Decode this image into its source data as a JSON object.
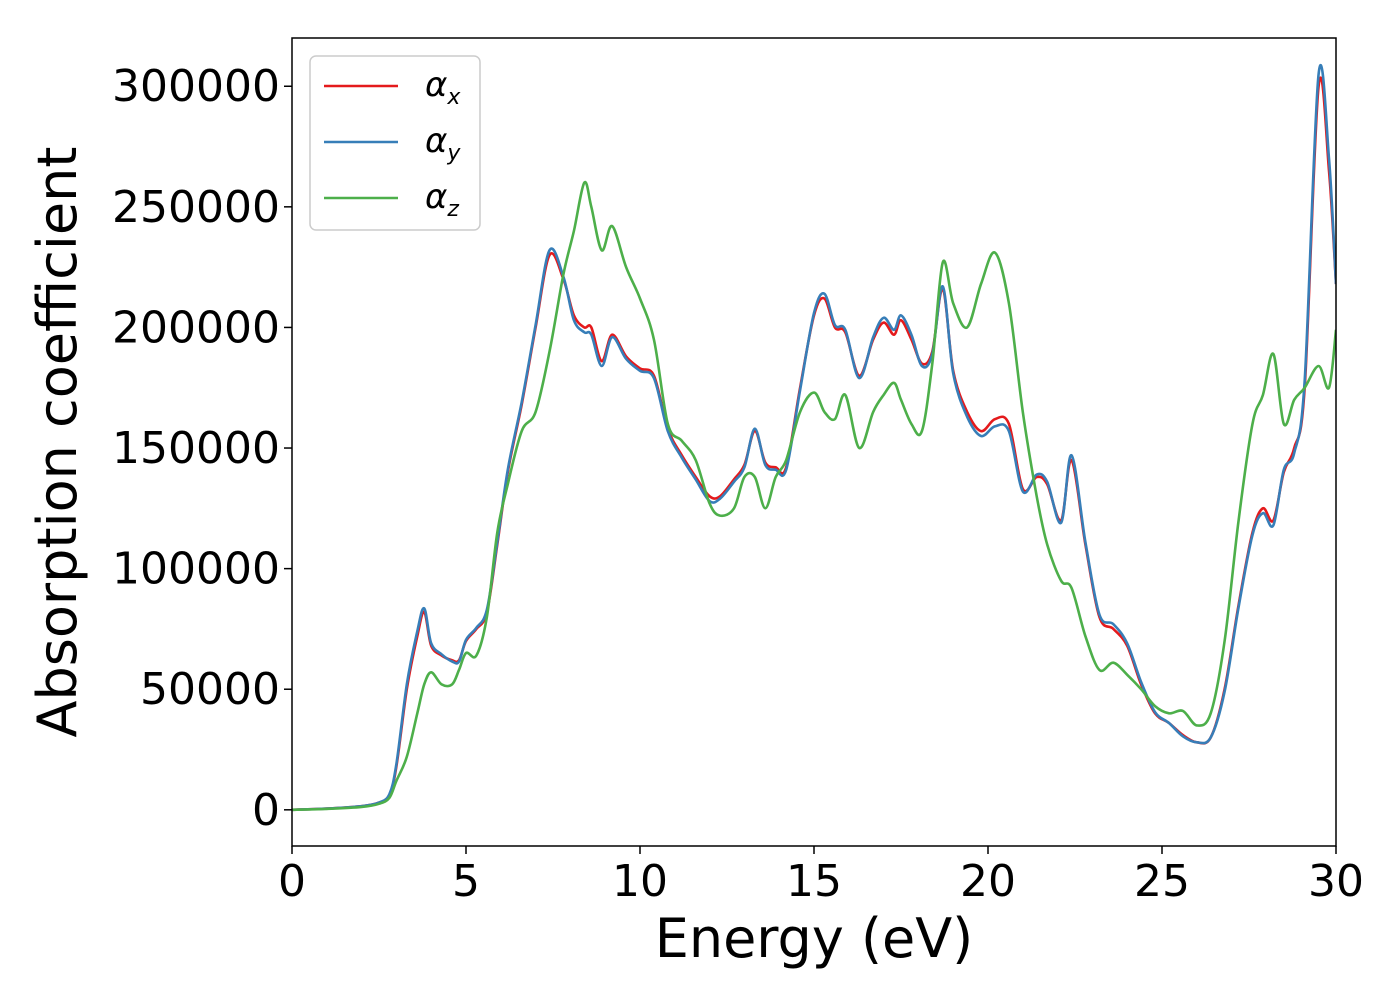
{
  "chart_data": {
    "type": "line",
    "title": "",
    "xlabel": "Energy (eV)",
    "ylabel": "Absorption coefficient",
    "xlim": [
      0,
      30
    ],
    "ylim": [
      -15000,
      320000
    ],
    "xticks": [
      0,
      5,
      10,
      15,
      20,
      25,
      30
    ],
    "xtick_labels": [
      "0",
      "5",
      "10",
      "15",
      "20",
      "25",
      "30"
    ],
    "yticks": [
      0,
      50000,
      100000,
      150000,
      200000,
      250000,
      300000
    ],
    "ytick_labels": [
      "0",
      "50000",
      "100000",
      "150000",
      "200000",
      "250000",
      "300000"
    ],
    "grid": false,
    "legend_position": "top-left",
    "series": [
      {
        "name": "α",
        "subscript": "x",
        "color": "#e41a1c",
        "x": [
          0,
          1,
          2,
          2.5,
          2.8,
          3.0,
          3.3,
          3.6,
          3.8,
          4.0,
          4.3,
          4.6,
          4.8,
          5.0,
          5.3,
          5.6,
          5.9,
          6.2,
          6.6,
          7.0,
          7.4,
          7.8,
          8.1,
          8.4,
          8.6,
          8.9,
          9.2,
          9.6,
          10.0,
          10.4,
          10.8,
          11.2,
          11.6,
          12.0,
          12.3,
          12.7,
          13.0,
          13.3,
          13.6,
          13.9,
          14.2,
          14.6,
          15.0,
          15.3,
          15.6,
          15.9,
          16.3,
          16.7,
          17.0,
          17.3,
          17.5,
          17.8,
          18.1,
          18.4,
          18.7,
          19.0,
          19.4,
          19.8,
          20.2,
          20.6,
          21.0,
          21.4,
          21.7,
          22.1,
          22.4,
          22.8,
          23.2,
          23.6,
          24.0,
          24.4,
          24.8,
          25.2,
          25.6,
          26.0,
          26.4,
          26.8,
          27.2,
          27.6,
          27.9,
          28.2,
          28.5,
          28.8,
          29.1,
          29.5,
          29.8,
          30.0
        ],
        "y": [
          0,
          500,
          1500,
          3000,
          6000,
          18000,
          50000,
          72000,
          82000,
          68000,
          64000,
          62000,
          62000,
          70000,
          75000,
          82000,
          110000,
          140000,
          168000,
          200000,
          230000,
          220000,
          205000,
          200000,
          200000,
          186000,
          197000,
          188000,
          183000,
          180000,
          158000,
          147000,
          138000,
          130000,
          130000,
          137000,
          143000,
          157000,
          144000,
          142000,
          142000,
          175000,
          205000,
          212000,
          200000,
          198000,
          180000,
          195000,
          202000,
          197000,
          203000,
          195000,
          185000,
          190000,
          216000,
          182000,
          165000,
          157000,
          162000,
          160000,
          133000,
          138000,
          135000,
          120000,
          145000,
          110000,
          80000,
          75000,
          68000,
          52000,
          40000,
          36000,
          31000,
          28000,
          30000,
          50000,
          85000,
          115000,
          125000,
          120000,
          140000,
          150000,
          175000,
          300000,
          265000,
          218000
        ]
      },
      {
        "name": "α",
        "subscript": "y",
        "color": "#377eb8",
        "x": [
          0,
          1,
          2,
          2.5,
          2.8,
          3.0,
          3.3,
          3.6,
          3.8,
          4.0,
          4.3,
          4.6,
          4.8,
          5.0,
          5.3,
          5.6,
          5.9,
          6.2,
          6.6,
          7.0,
          7.4,
          7.8,
          8.1,
          8.4,
          8.6,
          8.9,
          9.2,
          9.6,
          10.0,
          10.4,
          10.8,
          11.2,
          11.6,
          12.0,
          12.3,
          12.7,
          13.0,
          13.3,
          13.6,
          13.9,
          14.2,
          14.6,
          15.0,
          15.3,
          15.6,
          15.9,
          16.3,
          16.7,
          17.0,
          17.3,
          17.5,
          17.8,
          18.1,
          18.4,
          18.7,
          19.0,
          19.4,
          19.8,
          20.2,
          20.6,
          21.0,
          21.4,
          21.7,
          22.1,
          22.4,
          22.8,
          23.2,
          23.6,
          24.0,
          24.4,
          24.8,
          25.2,
          25.6,
          26.0,
          26.4,
          26.8,
          27.2,
          27.6,
          27.9,
          28.2,
          28.5,
          28.8,
          29.1,
          29.5,
          29.8,
          30.0
        ],
        "y": [
          0,
          500,
          1500,
          3000,
          6500,
          19000,
          52000,
          74000,
          83500,
          69000,
          64500,
          61500,
          61500,
          70500,
          75500,
          83000,
          111000,
          141000,
          169000,
          201000,
          232000,
          221000,
          203000,
          198000,
          197000,
          184000,
          196000,
          187000,
          182000,
          179000,
          157000,
          146000,
          137000,
          128000,
          129000,
          136000,
          142000,
          158000,
          143000,
          141000,
          141000,
          174000,
          206000,
          214000,
          201000,
          199000,
          179000,
          196000,
          204000,
          199000,
          205000,
          197000,
          184000,
          189000,
          217000,
          181000,
          163000,
          155000,
          159000,
          157000,
          132000,
          139000,
          136000,
          119000,
          147000,
          111000,
          81000,
          77000,
          69000,
          53000,
          40500,
          36000,
          30500,
          28000,
          30000,
          49000,
          84000,
          114000,
          123000,
          118000,
          141000,
          148000,
          178000,
          305000,
          270000,
          218000
        ]
      },
      {
        "name": "α",
        "subscript": "z",
        "color": "#4daf4a",
        "x": [
          0,
          1,
          2,
          2.5,
          2.8,
          3.0,
          3.3,
          3.6,
          3.8,
          4.0,
          4.3,
          4.6,
          4.8,
          5.0,
          5.3,
          5.6,
          5.9,
          6.2,
          6.6,
          7.0,
          7.4,
          7.8,
          8.1,
          8.4,
          8.6,
          8.9,
          9.2,
          9.6,
          10.0,
          10.4,
          10.8,
          11.2,
          11.6,
          12.0,
          12.3,
          12.7,
          13.0,
          13.3,
          13.6,
          13.9,
          14.2,
          14.6,
          15.0,
          15.3,
          15.6,
          15.9,
          16.3,
          16.7,
          17.0,
          17.3,
          17.5,
          17.8,
          18.1,
          18.4,
          18.7,
          19.0,
          19.4,
          19.8,
          20.2,
          20.6,
          21.0,
          21.4,
          21.7,
          22.1,
          22.4,
          22.8,
          23.2,
          23.6,
          24.0,
          24.4,
          24.8,
          25.2,
          25.6,
          26.0,
          26.4,
          26.8,
          27.2,
          27.6,
          27.9,
          28.2,
          28.5,
          28.8,
          29.1,
          29.5,
          29.8,
          30.0
        ],
        "y": [
          0,
          400,
          1200,
          2500,
          5000,
          12000,
          22000,
          40000,
          52000,
          57000,
          52000,
          52000,
          58000,
          65000,
          64000,
          80000,
          115000,
          135000,
          157000,
          165000,
          190000,
          222000,
          240000,
          260000,
          250000,
          232000,
          242000,
          225000,
          212000,
          195000,
          160000,
          153000,
          145000,
          127000,
          122000,
          125000,
          138000,
          138000,
          125000,
          138000,
          145000,
          165000,
          173000,
          165000,
          162000,
          172000,
          150000,
          165000,
          172000,
          177000,
          170000,
          160000,
          157000,
          185000,
          227000,
          210000,
          200000,
          218000,
          231000,
          210000,
          165000,
          130000,
          110000,
          95000,
          92000,
          72000,
          58000,
          61000,
          56000,
          50000,
          43000,
          40000,
          41000,
          35000,
          40000,
          70000,
          120000,
          160000,
          172000,
          189000,
          160000,
          170000,
          175000,
          184000,
          175000,
          199000
        ]
      }
    ]
  }
}
